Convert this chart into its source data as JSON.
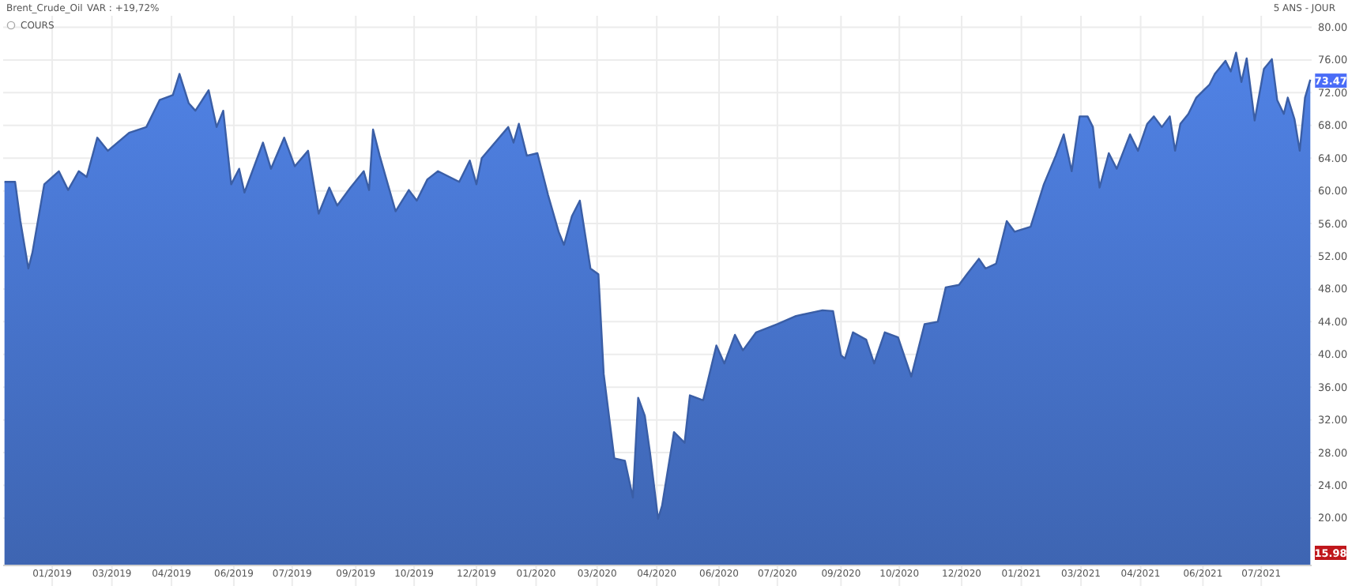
{
  "chart_data": {
    "type": "area",
    "title": "Brent_Crude_Oil",
    "subtitle": "VAR : +19,72%",
    "annotations": [
      "5 ANS - JOUR",
      {
        "text": "73.47",
        "x": "2021-08-21",
        "y": 73.47
      },
      "15.98"
    ],
    "legend": "top left",
    "grid": true,
    "xlim": [
      "2018-12-09",
      "2021-08-22"
    ],
    "ylim": [
      14.2,
      81.4
    ],
    "xticks": [
      {
        "value": "2019-01-15",
        "label": "01/2019"
      },
      {
        "value": "2019-03-01",
        "label": "03/2019"
      },
      {
        "value": "2019-04-15",
        "label": "04/2019"
      },
      {
        "value": "2019-06-01",
        "label": "06/2019"
      },
      {
        "value": "2019-07-15",
        "label": "07/2019"
      },
      {
        "value": "2019-09-01",
        "label": "09/2019"
      },
      {
        "value": "2019-10-15",
        "label": "10/2019"
      },
      {
        "value": "2019-12-01",
        "label": "12/2019"
      },
      {
        "value": "2020-01-15",
        "label": "01/2020"
      },
      {
        "value": "2020-03-01",
        "label": "03/2020"
      },
      {
        "value": "2020-04-15",
        "label": "04/2020"
      },
      {
        "value": "2020-06-01",
        "label": "06/2020"
      },
      {
        "value": "2020-07-15",
        "label": "07/2020"
      },
      {
        "value": "2020-09-01",
        "label": "09/2020"
      },
      {
        "value": "2020-10-15",
        "label": "10/2020"
      },
      {
        "value": "2020-12-01",
        "label": "12/2020"
      },
      {
        "value": "2021-01-15",
        "label": "01/2021"
      },
      {
        "value": "2021-03-01",
        "label": "03/2021"
      },
      {
        "value": "2021-04-15",
        "label": "04/2021"
      },
      {
        "value": "2021-06-01",
        "label": "06/2021"
      },
      {
        "value": "2021-07-15",
        "label": "07/2021"
      }
    ],
    "yticks": [
      {
        "value": 20,
        "label": "20.00"
      },
      {
        "value": 24,
        "label": "24.00"
      },
      {
        "value": 28,
        "label": "28.00"
      },
      {
        "value": 32,
        "label": "32.00"
      },
      {
        "value": 36,
        "label": "36.00"
      },
      {
        "value": 40,
        "label": "40.00"
      },
      {
        "value": 44,
        "label": "44.00"
      },
      {
        "value": 48,
        "label": "48.00"
      },
      {
        "value": 52,
        "label": "52.00"
      },
      {
        "value": 56,
        "label": "56.00"
      },
      {
        "value": 60,
        "label": "60.00"
      },
      {
        "value": 64,
        "label": "64.00"
      },
      {
        "value": 68,
        "label": "68.00"
      },
      {
        "value": 72,
        "label": "72.00"
      },
      {
        "value": 76,
        "label": "76.00"
      },
      {
        "value": 80,
        "label": "80.00"
      }
    ],
    "series": [
      {
        "name": "COURS",
        "color": "#3a5ea6",
        "x": [
          "2018-12-10",
          "2018-12-18",
          "2018-12-22",
          "2018-12-28",
          "2018-12-31",
          "2019-01-09",
          "2019-01-20",
          "2019-01-27",
          "2019-02-04",
          "2019-02-10",
          "2019-02-18",
          "2019-02-26",
          "2019-03-14",
          "2019-03-27",
          "2019-04-06",
          "2019-04-16",
          "2019-04-21",
          "2019-04-28",
          "2019-05-03",
          "2019-05-13",
          "2019-05-19",
          "2019-05-24",
          "2019-05-30",
          "2019-06-05",
          "2019-06-09",
          "2019-06-23",
          "2019-06-29",
          "2019-07-09",
          "2019-07-17",
          "2019-07-27",
          "2019-08-04",
          "2019-08-12",
          "2019-08-18",
          "2019-08-28",
          "2019-09-07",
          "2019-09-11",
          "2019-09-14",
          "2019-09-19",
          "2019-10-01",
          "2019-10-11",
          "2019-10-17",
          "2019-10-25",
          "2019-11-02",
          "2019-11-18",
          "2019-11-26",
          "2019-12-01",
          "2019-12-05",
          "2019-12-25",
          "2019-12-29",
          "2020-01-02",
          "2020-01-08",
          "2020-01-16",
          "2020-01-24",
          "2020-02-01",
          "2020-02-05",
          "2020-02-11",
          "2020-02-17",
          "2020-02-25",
          "2020-03-02",
          "2020-03-06",
          "2020-03-14",
          "2020-03-22",
          "2020-03-28",
          "2020-04-01",
          "2020-04-06",
          "2020-04-10",
          "2020-04-16",
          "2020-04-19",
          "2020-04-28",
          "2020-05-06",
          "2020-05-10",
          "2020-05-20",
          "2020-05-30",
          "2020-06-05",
          "2020-06-13",
          "2020-06-19",
          "2020-06-29",
          "2020-07-15",
          "2020-07-29",
          "2020-08-18",
          "2020-08-26",
          "2020-09-01",
          "2020-09-04",
          "2020-09-10",
          "2020-09-20",
          "2020-09-26",
          "2020-10-04",
          "2020-10-14",
          "2020-10-24",
          "2020-11-03",
          "2020-11-13",
          "2020-11-19",
          "2020-11-29",
          "2020-12-05",
          "2020-12-14",
          "2020-12-19",
          "2020-12-27",
          "2021-01-04",
          "2021-01-10",
          "2021-01-22",
          "2021-02-01",
          "2021-02-10",
          "2021-02-16",
          "2021-02-22",
          "2021-02-28",
          "2021-03-06",
          "2021-03-10",
          "2021-03-15",
          "2021-03-22",
          "2021-03-28",
          "2021-04-07",
          "2021-04-13",
          "2021-04-20",
          "2021-04-25",
          "2021-05-01",
          "2021-05-07",
          "2021-05-11",
          "2021-05-15",
          "2021-05-21",
          "2021-05-27",
          "2021-06-06",
          "2021-06-10",
          "2021-06-18",
          "2021-06-22",
          "2021-06-26",
          "2021-06-30",
          "2021-07-04",
          "2021-07-10",
          "2021-07-17",
          "2021-07-23",
          "2021-07-27",
          "2021-08-01",
          "2021-08-04",
          "2021-08-09",
          "2021-08-13",
          "2021-08-17",
          "2021-08-21"
        ],
        "values": [
          61.1,
          61.1,
          56.3,
          50.5,
          52.4,
          60.8,
          62.4,
          60.1,
          62.4,
          61.7,
          66.5,
          64.9,
          67.1,
          67.8,
          71.1,
          71.7,
          74.3,
          70.7,
          69.8,
          72.3,
          67.8,
          69.8,
          60.8,
          62.7,
          59.8,
          65.9,
          62.7,
          66.5,
          63.0,
          64.9,
          57.2,
          60.4,
          58.2,
          60.4,
          62.4,
          60.1,
          67.5,
          64.3,
          57.5,
          60.1,
          58.8,
          61.4,
          62.4,
          61.1,
          63.7,
          60.8,
          64.0,
          67.8,
          65.9,
          68.2,
          64.3,
          64.6,
          59.5,
          55.0,
          53.4,
          56.9,
          58.8,
          50.5,
          49.8,
          37.6,
          27.3,
          27.0,
          22.5,
          34.7,
          32.5,
          27.9,
          19.9,
          21.5,
          30.5,
          29.2,
          35.0,
          34.4,
          41.1,
          38.9,
          42.4,
          40.5,
          42.7,
          43.7,
          44.7,
          45.4,
          45.3,
          39.9,
          39.5,
          42.7,
          41.8,
          38.9,
          42.7,
          42.1,
          37.3,
          43.7,
          44.0,
          48.2,
          48.5,
          49.8,
          51.7,
          50.5,
          51.1,
          56.3,
          55.0,
          55.6,
          60.8,
          64.3,
          66.9,
          62.4,
          69.1,
          69.1,
          67.8,
          60.4,
          64.6,
          62.7,
          66.9,
          64.9,
          68.2,
          69.1,
          67.8,
          69.1,
          64.9,
          68.2,
          69.4,
          71.4,
          73.0,
          74.3,
          75.9,
          74.6,
          76.9,
          73.3,
          76.2,
          68.6,
          74.9,
          76.1,
          71.1,
          69.4,
          71.4,
          68.8,
          64.9,
          71.4,
          73.6
        ]
      }
    ]
  }
}
